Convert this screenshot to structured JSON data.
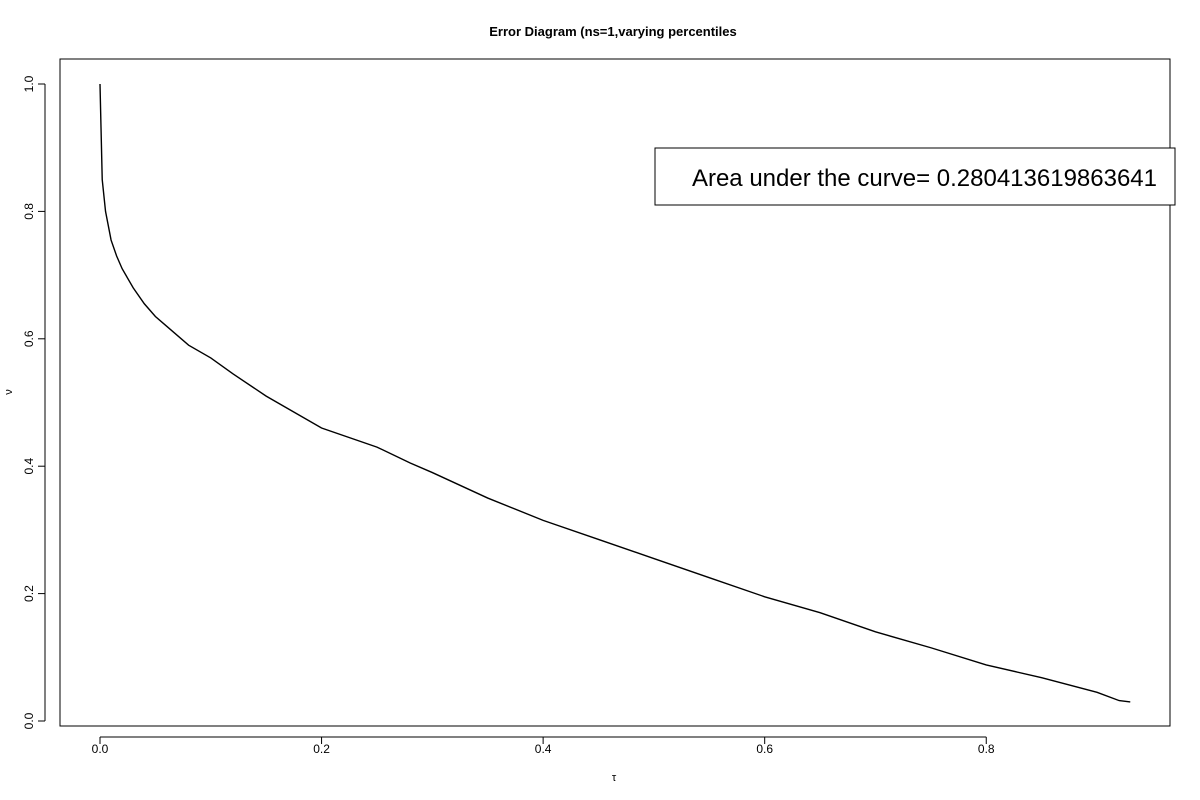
{
  "chart_data": {
    "type": "line",
    "title": "Error Diagram (ns=1,varying percentiles",
    "xlabel": "τ",
    "ylabel": "ν",
    "xlim": [
      0,
      0.93
    ],
    "ylim": [
      0,
      1.0
    ],
    "xticks": [
      0.0,
      0.2,
      0.4,
      0.6,
      0.8
    ],
    "xtick_labels": [
      "0.0",
      "0.2",
      "0.4",
      "0.6",
      "0.8"
    ],
    "yticks": [
      0.0,
      0.2,
      0.4,
      0.6,
      0.8,
      1.0
    ],
    "ytick_labels": [
      "0.0",
      "0.2",
      "0.4",
      "0.6",
      "0.8",
      "1.0"
    ],
    "grid": false,
    "legend_position": "top-right",
    "annotation": "Area under the curve= 0.280413619863641",
    "series": [
      {
        "color": "#000000",
        "x": [
          0.0,
          0.002,
          0.005,
          0.01,
          0.015,
          0.02,
          0.03,
          0.04,
          0.05,
          0.06,
          0.08,
          0.1,
          0.12,
          0.15,
          0.18,
          0.2,
          0.25,
          0.28,
          0.3,
          0.35,
          0.4,
          0.45,
          0.5,
          0.55,
          0.6,
          0.65,
          0.7,
          0.75,
          0.8,
          0.85,
          0.9,
          0.92,
          0.93
        ],
        "y": [
          1.0,
          0.85,
          0.8,
          0.755,
          0.73,
          0.71,
          0.68,
          0.655,
          0.635,
          0.62,
          0.59,
          0.57,
          0.545,
          0.51,
          0.48,
          0.46,
          0.43,
          0.405,
          0.39,
          0.35,
          0.315,
          0.285,
          0.255,
          0.225,
          0.195,
          0.17,
          0.14,
          0.115,
          0.088,
          0.068,
          0.045,
          0.032,
          0.03
        ]
      }
    ]
  }
}
